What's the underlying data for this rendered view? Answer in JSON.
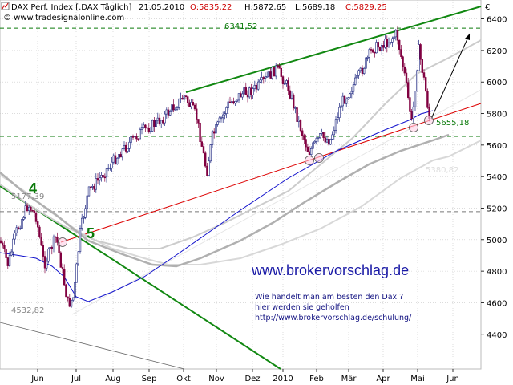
{
  "header": {
    "symbol": "DAX Perf. Index [.DAX Täglich]",
    "date": "21.05.2010",
    "open": "O:5835,22",
    "high": "H:5872,65",
    "low": "L:5689,18",
    "close": "C:5829,25",
    "copyright": "© www.tradesignalonline.com"
  },
  "colors": {
    "candle_up": "#1a237e",
    "candle_down": "#800040",
    "trendline_green": "#118811",
    "trendline_red": "#dd0000",
    "ma_blue": "#1010cc",
    "ma_gray": "#aaaaaa",
    "brand_text": "#1a1aa6",
    "note_text": "#101080",
    "level_green": "#0a7a0a"
  },
  "annotations": {
    "wave_4": "4",
    "wave_5": "5",
    "level_top": "6341,52",
    "level_mid": "5655,18",
    "level_left": "5177,39",
    "level_low": "4532,82",
    "level_faint": "5380,82",
    "site": "www.brokervorschlag.de",
    "note_line1": "Wie handelt man am besten  den Dax ?",
    "note_line2": "hier werden sie geholfen",
    "note_line3": "http://www.brokervorschlag.de/schulung/"
  },
  "chart_data": {
    "type": "candlestick",
    "title": "DAX Perf. Index [.DAX Täglich]",
    "y_unit": "€",
    "ylim": [
      4180,
      6520
    ],
    "y_ticks": [
      4400,
      4600,
      4800,
      5000,
      5200,
      5400,
      5600,
      5800,
      6000,
      6200,
      6400
    ],
    "x_ticks": [
      "Jun",
      "Jul",
      "Aug",
      "Sep",
      "Okt",
      "Nov",
      "Dez",
      "2010",
      "Feb",
      "Mär",
      "Apr",
      "Mai",
      "Jun"
    ],
    "grid": "dotted",
    "close_path": [
      [
        "May 2009",
        4950
      ],
      [
        "early Jun 2009",
        5120
      ],
      [
        "mid Jun 2009",
        4950
      ],
      [
        "early Jul 2009",
        4780
      ],
      [
        "mid Jul 2009",
        4560
      ],
      [
        "late Jul 2009",
        5100
      ],
      [
        "Aug 2009",
        5300
      ],
      [
        "Sep 2009",
        5600
      ],
      [
        "early Oct 2009",
        5900
      ],
      [
        "late Oct 2009",
        5450
      ],
      [
        "Nov 2009",
        5700
      ],
      [
        "early Dec 2009",
        5800
      ],
      [
        "late Dec 2009",
        5950
      ],
      [
        "early Jan 2010",
        6050
      ],
      [
        "late Jan 2010",
        5600
      ],
      [
        "Feb 2010",
        5450
      ],
      [
        "Mar 2010",
        5900
      ],
      [
        "Apr 2010",
        6200
      ],
      [
        "late Apr 2010",
        6340
      ],
      [
        "early May 2010",
        5700
      ],
      [
        "mid May 2010",
        6200
      ],
      [
        "21.05.2010",
        5829
      ]
    ],
    "horizontal_levels": [
      6341.52,
      5655.18,
      5177.39,
      4532.82
    ]
  }
}
